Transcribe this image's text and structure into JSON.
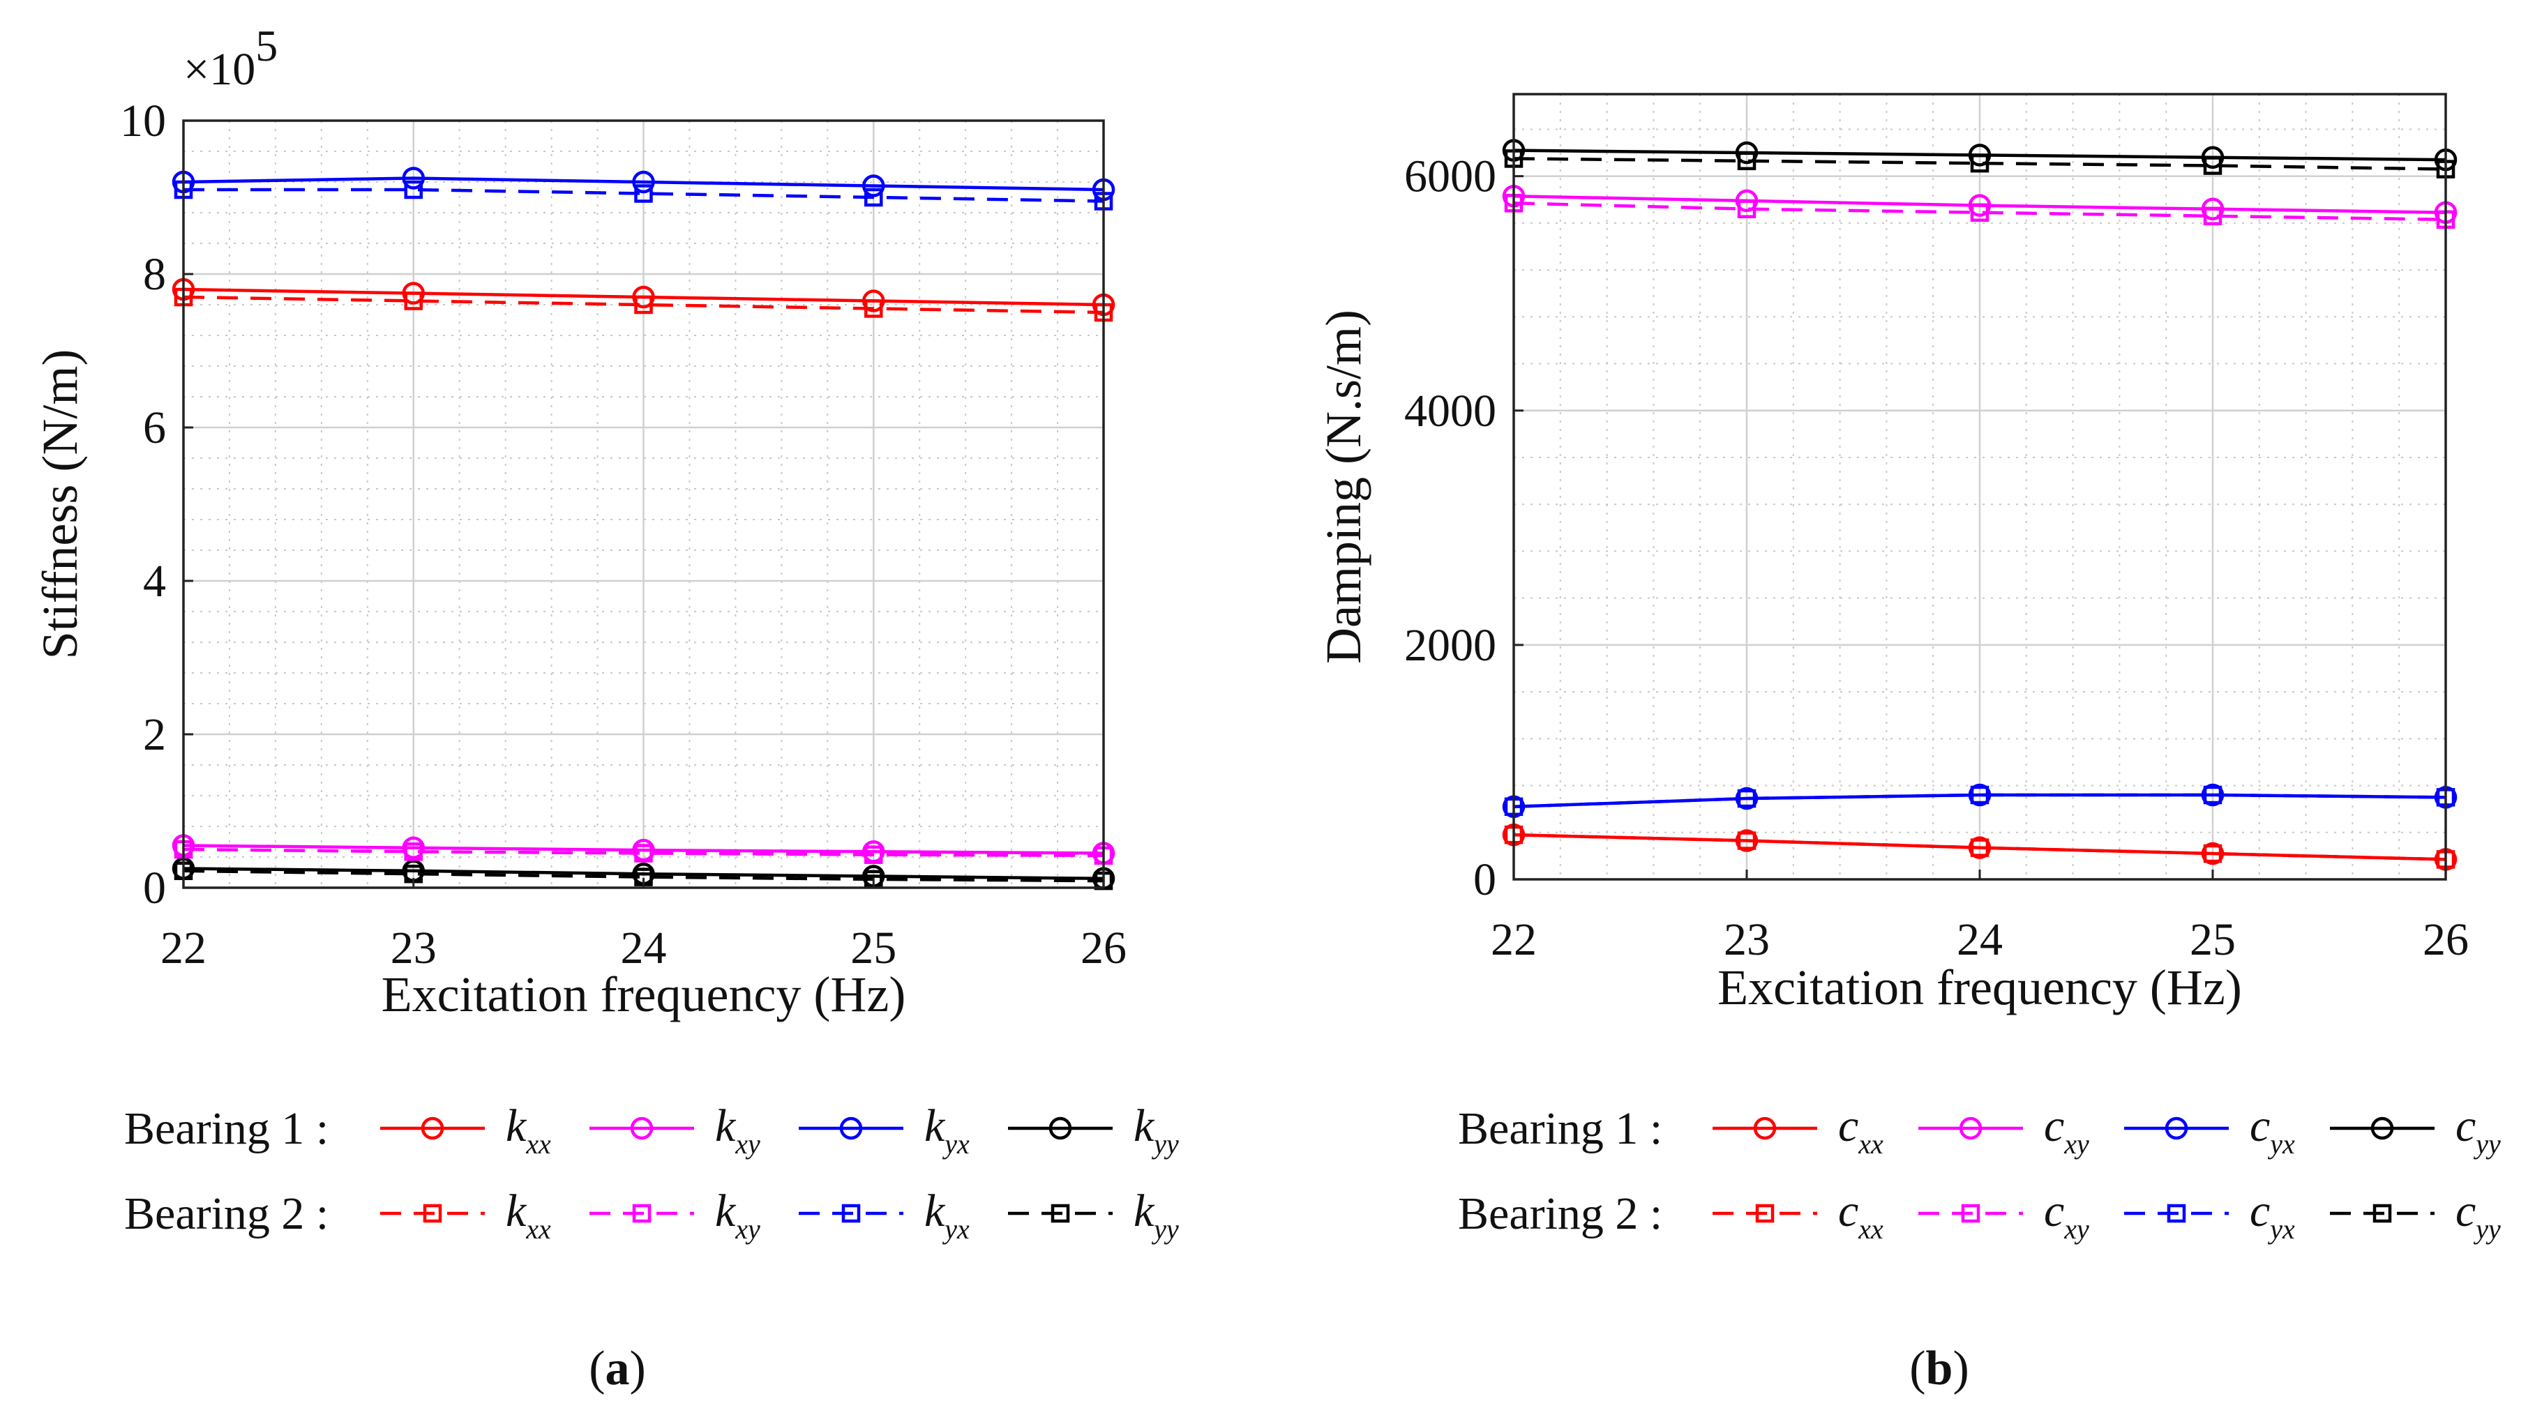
{
  "figure": {
    "caption_a": "a",
    "caption_b": "b"
  },
  "chart_data": [
    {
      "id": "a",
      "type": "line",
      "title": "",
      "xlabel": "Excitation frequency (Hz)",
      "ylabel": "Stiffness (N/m)",
      "y_exponent_label": "×10",
      "y_exponent_power": "5",
      "x": [
        22,
        23,
        24,
        25,
        26
      ],
      "xlim": [
        22,
        26
      ],
      "ylim": [
        0,
        10
      ],
      "xticks": [
        "22",
        "23",
        "24",
        "25",
        "26"
      ],
      "yticks": [
        "0",
        "2",
        "4",
        "6",
        "8",
        "10"
      ],
      "grid": true,
      "legend": {
        "row1_label": "Bearing 1 :",
        "row2_label": "Bearing 2 :",
        "symbol": "k",
        "subscripts": [
          "xx",
          "xy",
          "yx",
          "yy"
        ]
      },
      "series": [
        {
          "name": "Bearing 1 kxx",
          "bearing": 1,
          "color": "#ff0000",
          "dash": false,
          "marker": "circle",
          "values": [
            7.8,
            7.75,
            7.7,
            7.65,
            7.6
          ]
        },
        {
          "name": "Bearing 1 kxy",
          "bearing": 1,
          "color": "#ff00ff",
          "dash": false,
          "marker": "circle",
          "values": [
            0.55,
            0.52,
            0.49,
            0.47,
            0.45
          ]
        },
        {
          "name": "Bearing 1 kyx",
          "bearing": 1,
          "color": "#0000ff",
          "dash": false,
          "marker": "circle",
          "values": [
            9.2,
            9.25,
            9.2,
            9.15,
            9.1
          ]
        },
        {
          "name": "Bearing 1 kyy",
          "bearing": 1,
          "color": "#000000",
          "dash": false,
          "marker": "circle",
          "values": [
            0.25,
            0.22,
            0.18,
            0.15,
            0.12
          ]
        },
        {
          "name": "Bearing 2 kxx",
          "bearing": 2,
          "color": "#ff0000",
          "dash": true,
          "marker": "square",
          "values": [
            7.7,
            7.65,
            7.6,
            7.55,
            7.5
          ]
        },
        {
          "name": "Bearing 2 kxy",
          "bearing": 2,
          "color": "#ff00ff",
          "dash": true,
          "marker": "square",
          "values": [
            0.5,
            0.47,
            0.45,
            0.43,
            0.42
          ]
        },
        {
          "name": "Bearing 2 kyx",
          "bearing": 2,
          "color": "#0000ff",
          "dash": true,
          "marker": "square",
          "values": [
            9.1,
            9.1,
            9.05,
            9.0,
            8.95
          ]
        },
        {
          "name": "Bearing 2 kyy",
          "bearing": 2,
          "color": "#000000",
          "dash": true,
          "marker": "square",
          "values": [
            0.22,
            0.18,
            0.14,
            0.11,
            0.09
          ]
        }
      ]
    },
    {
      "id": "b",
      "type": "line",
      "title": "",
      "xlabel": "Excitation frequency (Hz)",
      "ylabel": "Damping (N.s/m)",
      "x": [
        22,
        23,
        24,
        25,
        26
      ],
      "xlim": [
        22,
        26
      ],
      "ylim": [
        0,
        6700
      ],
      "xticks": [
        "22",
        "23",
        "24",
        "25",
        "26"
      ],
      "yticks": [
        "0",
        "2000",
        "4000",
        "6000"
      ],
      "grid": true,
      "legend": {
        "row1_label": "Bearing 1 :",
        "row2_label": "Bearing 2 :",
        "symbol": "c",
        "subscripts": [
          "xx",
          "xy",
          "yx",
          "yy"
        ]
      },
      "series": [
        {
          "name": "Bearing 1 cxx",
          "bearing": 1,
          "color": "#ff0000",
          "dash": false,
          "marker": "circle",
          "values": [
            380,
            330,
            270,
            220,
            170
          ]
        },
        {
          "name": "Bearing 1 cxy",
          "bearing": 1,
          "color": "#ff00ff",
          "dash": false,
          "marker": "circle",
          "values": [
            5830,
            5790,
            5750,
            5720,
            5690
          ]
        },
        {
          "name": "Bearing 1 cyx",
          "bearing": 1,
          "color": "#0000ff",
          "dash": false,
          "marker": "circle",
          "values": [
            620,
            690,
            720,
            720,
            700
          ]
        },
        {
          "name": "Bearing 1 cyy",
          "bearing": 1,
          "color": "#000000",
          "dash": false,
          "marker": "circle",
          "values": [
            6220,
            6200,
            6180,
            6160,
            6140
          ]
        },
        {
          "name": "Bearing 2 cxx",
          "bearing": 2,
          "color": "#ff0000",
          "dash": true,
          "marker": "square",
          "values": [
            380,
            330,
            270,
            220,
            170
          ]
        },
        {
          "name": "Bearing 2 cxy",
          "bearing": 2,
          "color": "#ff00ff",
          "dash": true,
          "marker": "square",
          "values": [
            5770,
            5720,
            5690,
            5660,
            5630
          ]
        },
        {
          "name": "Bearing 2 cyx",
          "bearing": 2,
          "color": "#0000ff",
          "dash": true,
          "marker": "square",
          "values": [
            620,
            690,
            720,
            720,
            700
          ]
        },
        {
          "name": "Bearing 2 cyy",
          "bearing": 2,
          "color": "#000000",
          "dash": true,
          "marker": "square",
          "values": [
            6150,
            6130,
            6110,
            6090,
            6060
          ]
        }
      ]
    }
  ]
}
